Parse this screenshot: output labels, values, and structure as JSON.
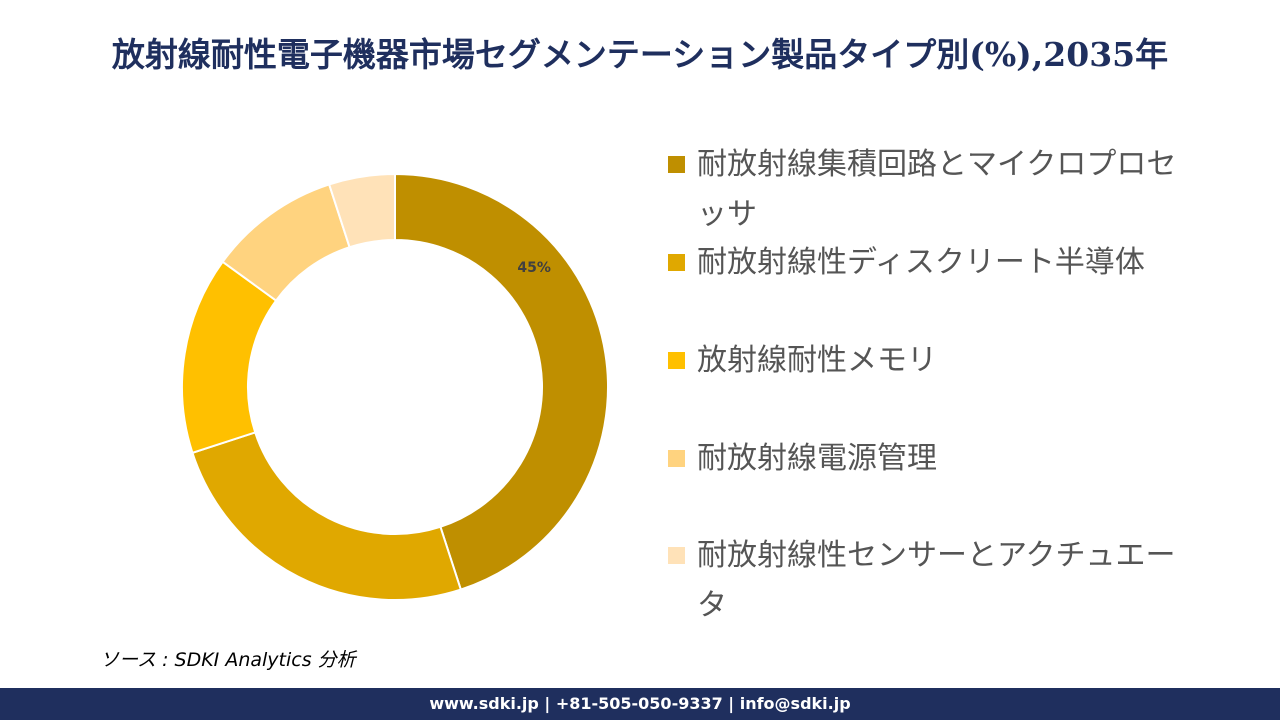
{
  "chart_data": {
    "type": "donut",
    "title": "放射線耐性電子機器市場セグメンテーション製品タイプ別(%),2035年",
    "categories": [
      "耐放射線集積回路とマイクロプロセッサ",
      "耐放射線性ディスクリート半導体",
      "放射線耐性メモリ",
      "耐放射線電源管理",
      "耐放射線性センサーとアクチュエータ"
    ],
    "values": [
      45,
      25,
      15,
      10,
      5
    ],
    "value_labels": [
      "45%",
      null,
      null,
      null,
      null
    ],
    "colors": [
      "#BF8F00",
      "#E0A800",
      "#FFC000",
      "#FFD37F",
      "#FFE2B8"
    ]
  },
  "source": "ソース : SDKI Analytics 分析",
  "footer": "www.sdki.jp | +81-505-050-9337 | info@sdki.jp"
}
